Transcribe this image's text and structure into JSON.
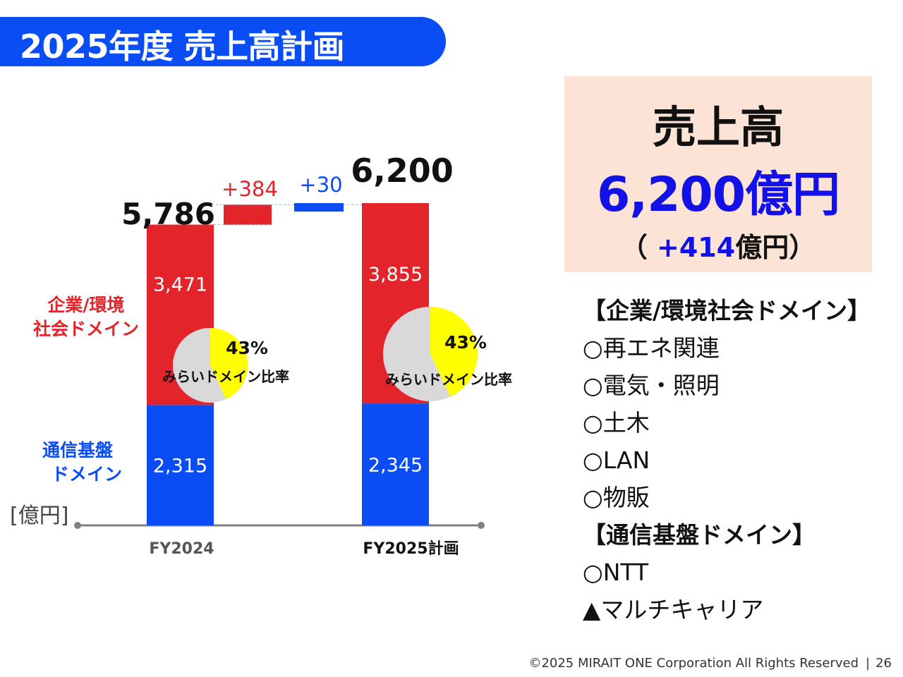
{
  "title": "2025年度 売上高計画",
  "chart_data": {
    "type": "bar",
    "subtype": "stacked-waterfall",
    "unit_label": "[億円]",
    "categories": [
      "FY2024",
      "FY2025計画"
    ],
    "series": [
      {
        "name": "企業/環境社会ドメイン",
        "color": "#e3242b",
        "values": [
          3471,
          3855
        ]
      },
      {
        "name": "通信基盤ドメイン",
        "color": "#0b4df5",
        "values": [
          2315,
          2345
        ]
      }
    ],
    "value_labels": {
      "enterprise": [
        "3,471",
        "3,855"
      ],
      "telecom": [
        "2,315",
        "2,345"
      ]
    },
    "totals": [
      5786,
      6200
    ],
    "total_labels": [
      "5,786",
      "6,200"
    ],
    "bridge": [
      {
        "label": "+384",
        "value": 384,
        "color": "#e3242b"
      },
      {
        "label": "+30",
        "value": 30,
        "color": "#0b4df5"
      }
    ],
    "series_labels": {
      "enterprise": [
        "企業/環境",
        "社会ドメイン"
      ],
      "telecom": [
        "通信基盤",
        "ドメイン"
      ]
    },
    "pies": [
      {
        "percent": 43,
        "label": "43%",
        "caption": "みらいドメイン比率"
      },
      {
        "percent": 43,
        "label": "43%",
        "caption": "みらいドメイン比率"
      }
    ],
    "colors": {
      "pie_highlight": "#ffff00",
      "pie_rest": "#d9d9d9",
      "axis": "#808080"
    }
  },
  "panel": {
    "title": "売上高",
    "value": "6,200億円",
    "sub_open": "（ ",
    "sub_value": "+414",
    "sub_close": "億円）"
  },
  "list": [
    "【企業/環境社会ドメイン】",
    "○再エネ関連",
    "○電気・照明",
    "○土木",
    "○LAN",
    "○物販",
    "【通信基盤ドメイン】",
    "○NTT",
    "▲マルチキャリア"
  ],
  "footer": {
    "copyright": "©2025 MIRAIT ONE Corporation All Rights Reserved",
    "separator": "|",
    "page": "26"
  }
}
